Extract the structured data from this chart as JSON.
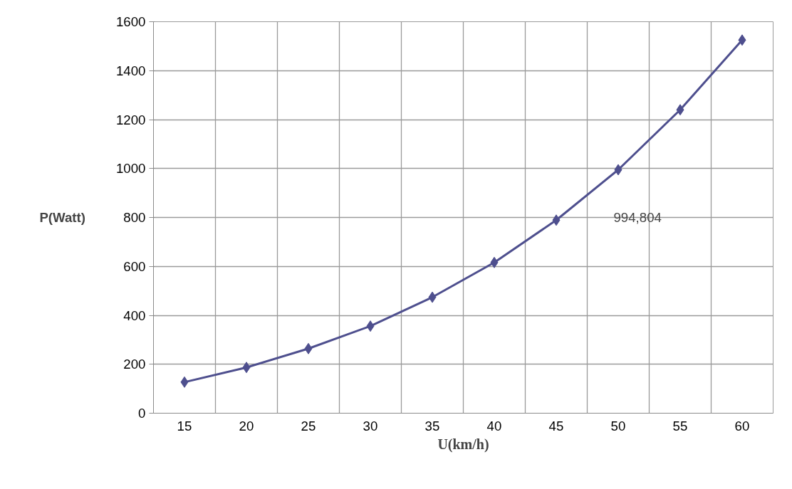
{
  "chart_data": {
    "type": "line",
    "xlabel": "U(km/h)",
    "ylabel": "P(Watt)",
    "categories": [
      "15",
      "20",
      "25",
      "30",
      "35",
      "40",
      "45",
      "50",
      "55",
      "60"
    ],
    "series": [
      {
        "color": "#4e4f8e",
        "values": [
          127,
          187,
          264,
          356,
          474,
          616,
          789,
          995,
          1240,
          1525
        ]
      }
    ],
    "ylim": [
      0,
      1600
    ],
    "yticks": [
      0,
      200,
      400,
      600,
      800,
      1000,
      1200,
      1400,
      1600
    ],
    "annotations": [
      "994,804"
    ],
    "grid": true,
    "marker": "diamond",
    "line_style": "solid"
  }
}
